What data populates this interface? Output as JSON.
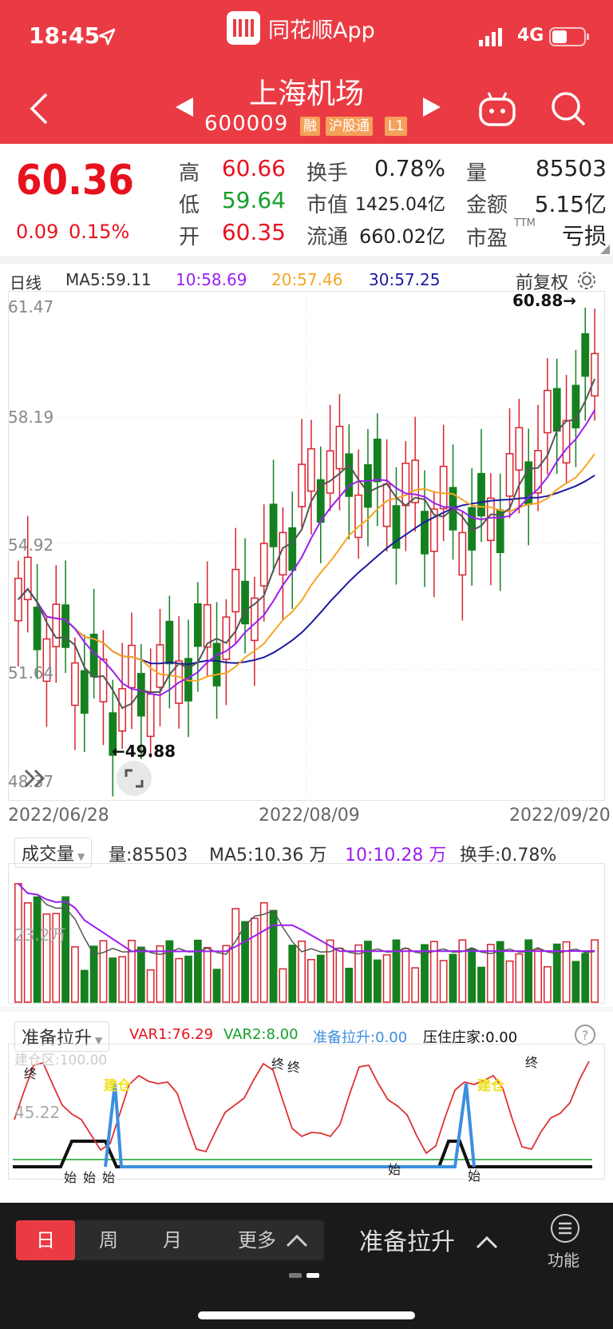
{
  "status": {
    "time": "18:45",
    "app_name": "同花顺App",
    "network": "4G"
  },
  "header": {
    "title": "上海机场",
    "code": "600009",
    "tags": [
      "融",
      "沪股通",
      "L1"
    ]
  },
  "quote": {
    "price": "60.36",
    "change": "0.09",
    "change_pct": "0.15%",
    "high_label": "高",
    "high": "60.66",
    "low_label": "低",
    "low": "59.64",
    "open_label": "开",
    "open": "60.35",
    "turnover_label": "换手",
    "turnover": "0.78%",
    "mktcap_label": "市值",
    "mktcap": "1425.04亿",
    "float_label": "流通",
    "float": "660.02亿",
    "vol_label": "量",
    "vol": "85503",
    "amount_label": "金额",
    "amount": "5.15亿",
    "pe_label": "市盈",
    "pe_sup": "TTM",
    "pe": "亏损"
  },
  "kline": {
    "period": "日线",
    "ma5": "MA5:59.11",
    "ma10": "10:58.69",
    "ma20": "20:57.46",
    "ma30": "30:57.25",
    "adjust": "前复权",
    "y_labels": [
      "61.47",
      "58.19",
      "54.92",
      "51.64",
      "48.37"
    ],
    "high_marker": "60.88→",
    "low_marker": "←49.88",
    "dates": [
      "2022/06/28",
      "2022/08/09",
      "2022/09/20"
    ],
    "colors": {
      "up": "#d9232e",
      "down": "#15801f",
      "ma5": "#555555",
      "ma10": "#9b1ff0",
      "ma20": "#f5a623",
      "ma30": "#1a1aa0"
    }
  },
  "volume": {
    "selector": "成交量",
    "vol": "量:85503",
    "ma5": "MA5:10.36 万",
    "ma10": "10:10.28 万",
    "turnover": "换手:0.78%",
    "y_label": "23.2万"
  },
  "indicator": {
    "selector": "准备拉升",
    "var1": "VAR1:76.29",
    "var2": "VAR2:8.00",
    "prep": "准备拉升:0.00",
    "press": "压住庄家:0.00",
    "zone": "建仓区:100.00",
    "y_label": "45.22",
    "build": "建仓",
    "end": "终",
    "start": "始"
  },
  "bottom": {
    "day": "日",
    "week": "周",
    "month": "月",
    "more": "更多",
    "indicator": "准备拉升",
    "func": "功能"
  }
}
